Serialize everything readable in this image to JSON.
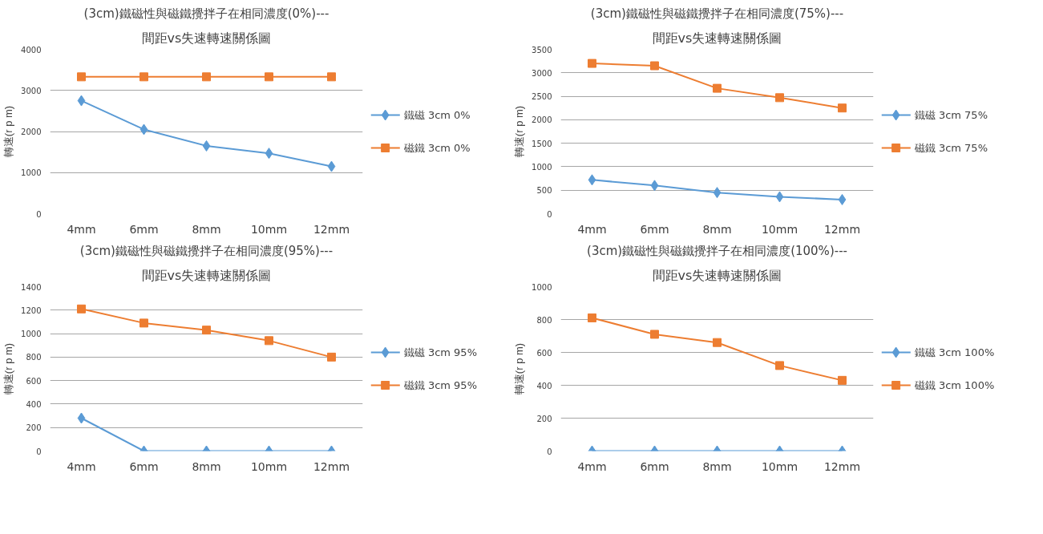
{
  "chart_data": [
    {
      "type": "line",
      "title": "(3cm)鐵磁性與磁鐵攪拌子在相同濃度(0%)---",
      "subtitle": "間距vs失速轉速關係圖",
      "ylabel": "轉速(r p m)",
      "categories": [
        "4mm",
        "6mm",
        "8mm",
        "10mm",
        "12mm"
      ],
      "ylim": [
        0,
        4000
      ],
      "yticks": [
        0,
        1000,
        2000,
        3000,
        4000
      ],
      "grid": "y",
      "legend": "right",
      "series": [
        {
          "name": "鐵磁 3cm 0%",
          "color": "#5b9bd5",
          "marker": "diamond",
          "values": [
            2750,
            2050,
            1650,
            1470,
            1150
          ]
        },
        {
          "name": "磁鐵 3cm 0%",
          "color": "#ed7d31",
          "marker": "square",
          "values": [
            3330,
            3330,
            3330,
            3330,
            3330
          ]
        }
      ]
    },
    {
      "type": "line",
      "title": "(3cm)鐵磁性與磁鐵攪拌子在相同濃度(75%)---",
      "subtitle": "間距vs失速轉速關係圖",
      "ylabel": "轉速(r p m)",
      "categories": [
        "4mm",
        "6mm",
        "8mm",
        "10mm",
        "12mm"
      ],
      "ylim": [
        0,
        3500
      ],
      "yticks": [
        0,
        500,
        1000,
        1500,
        2000,
        2500,
        3000,
        3500
      ],
      "grid": "y",
      "legend": "right",
      "series": [
        {
          "name": "鐵磁 3cm 75%",
          "color": "#5b9bd5",
          "marker": "diamond",
          "values": [
            720,
            600,
            450,
            360,
            300
          ]
        },
        {
          "name": "磁鐵 3cm 75%",
          "color": "#ed7d31",
          "marker": "square",
          "values": [
            3200,
            3150,
            2670,
            2470,
            2250
          ]
        }
      ]
    },
    {
      "type": "line",
      "title": "(3cm)鐵磁性與磁鐵攪拌子在相同濃度(95%)---",
      "subtitle": "間距vs失速轉速關係圖",
      "ylabel": "轉速(r p m)",
      "categories": [
        "4mm",
        "6mm",
        "8mm",
        "10mm",
        "12mm"
      ],
      "ylim": [
        0,
        1400
      ],
      "yticks": [
        0,
        200,
        400,
        600,
        800,
        1000,
        1200,
        1400
      ],
      "grid": "y",
      "legend": "right",
      "series": [
        {
          "name": "鐵磁 3cm 95%",
          "color": "#5b9bd5",
          "marker": "diamond",
          "values": [
            280,
            0,
            0,
            0,
            0
          ]
        },
        {
          "name": "磁鐵 3cm 95%",
          "color": "#ed7d31",
          "marker": "square",
          "values": [
            1210,
            1090,
            1030,
            940,
            800
          ]
        }
      ]
    },
    {
      "type": "line",
      "title": "(3cm)鐵磁性與磁鐵攪拌子在相同濃度(100%)---",
      "subtitle": "間距vs失速轉速關係圖",
      "ylabel": "轉速(r p m)",
      "categories": [
        "4mm",
        "6mm",
        "8mm",
        "10mm",
        "12mm"
      ],
      "ylim": [
        0,
        1000
      ],
      "yticks": [
        0,
        200,
        400,
        600,
        800,
        1000
      ],
      "grid": "y",
      "legend": "right",
      "series": [
        {
          "name": "鐵磁 3cm 100%",
          "color": "#5b9bd5",
          "marker": "diamond",
          "values": [
            0,
            0,
            0,
            0,
            0
          ]
        },
        {
          "name": "磁鐵 3cm 100%",
          "color": "#ed7d31",
          "marker": "square",
          "values": [
            810,
            710,
            660,
            520,
            430
          ]
        }
      ]
    }
  ]
}
